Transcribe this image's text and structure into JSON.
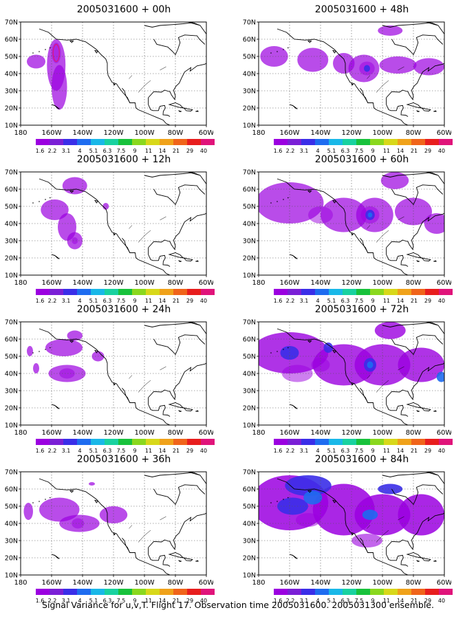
{
  "caption": "Signal Variance for u,v,T. Flight 17. Observation time 2005031600. 2005031300 ensemble.",
  "lat_labels": [
    "70N",
    "60N",
    "50N",
    "40N",
    "30N",
    "20N",
    "10N"
  ],
  "lon_labels": [
    "180",
    "160W",
    "140W",
    "120W",
    "100W",
    "80W",
    "60W"
  ],
  "colorbar": {
    "labels": [
      "1.6",
      "2.2",
      "3.1",
      "4",
      "5.1",
      "6.3",
      "7.5",
      "9",
      "11",
      "14",
      "21",
      "29",
      "40"
    ],
    "colors": [
      "#9b00e0",
      "#7a1fd6",
      "#3a2ee8",
      "#1e6cf0",
      "#19b8e8",
      "#19d2a0",
      "#18c23c",
      "#8ad81e",
      "#d8d81a",
      "#f0a21a",
      "#f0641a",
      "#e81e1e",
      "#e0147a"
    ]
  },
  "panels": [
    {
      "title": "2005031600 + 00h",
      "blobs": [
        [
          157,
          45,
          6,
          15,
          0.7
        ],
        [
          155,
          32,
          5,
          13,
          0.7
        ],
        [
          170,
          47,
          6,
          4,
          0.7
        ],
        [
          157,
          52,
          3,
          6,
          0.45
        ]
      ],
      "cores": [
        [
          157,
          52,
          2,
          5,
          0
        ]
      ]
    },
    {
      "title": "2005031600 + 48h",
      "blobs": [
        [
          170,
          50,
          9,
          6,
          0.7
        ],
        [
          145,
          48,
          10,
          7,
          0.7
        ],
        [
          125,
          46,
          7,
          6,
          0.7
        ],
        [
          112,
          43,
          10,
          8,
          0.7
        ],
        [
          90,
          45,
          12,
          5,
          0.7
        ],
        [
          70,
          44,
          10,
          5,
          0.7
        ],
        [
          95,
          65,
          8,
          3,
          0.7
        ],
        [
          110,
          43,
          5,
          4,
          0.5
        ]
      ],
      "cores": [
        [
          110,
          43,
          2,
          2,
          2
        ]
      ]
    },
    {
      "title": "2005031600 + 12h",
      "blobs": [
        [
          145,
          62,
          8,
          5,
          0.7
        ],
        [
          158,
          48,
          9,
          6,
          0.7
        ],
        [
          150,
          38,
          6,
          8,
          0.7
        ],
        [
          145,
          30,
          5,
          5,
          0.7
        ],
        [
          125,
          50,
          2,
          2,
          0.7
        ],
        [
          145,
          30,
          2,
          2,
          0.5
        ]
      ],
      "cores": []
    },
    {
      "title": "2005031600 + 60h",
      "blobs": [
        [
          160,
          52,
          22,
          12,
          0.7
        ],
        [
          125,
          45,
          15,
          10,
          0.7
        ],
        [
          105,
          45,
          12,
          10,
          0.7
        ],
        [
          80,
          47,
          12,
          8,
          0.7
        ],
        [
          65,
          40,
          8,
          6,
          0.7
        ],
        [
          92,
          65,
          9,
          5,
          0.7
        ],
        [
          108,
          45,
          6,
          5,
          0.5
        ],
        [
          140,
          45,
          8,
          5,
          0.5
        ]
      ],
      "cores": [
        [
          108,
          45,
          3,
          3,
          2
        ],
        [
          108,
          45,
          1.5,
          1.5,
          3
        ]
      ]
    },
    {
      "title": "2005031600 + 24h",
      "blobs": [
        [
          152,
          55,
          12,
          5,
          0.7
        ],
        [
          145,
          62,
          5,
          3,
          0.7
        ],
        [
          150,
          40,
          12,
          5,
          0.7
        ],
        [
          130,
          50,
          4,
          3,
          0.7
        ],
        [
          174,
          53,
          2,
          3,
          0.7
        ],
        [
          170,
          43,
          2,
          3,
          0.7
        ],
        [
          150,
          40,
          5,
          3,
          0.5
        ]
      ],
      "cores": []
    },
    {
      "title": "2005031600 + 72h",
      "blobs": [
        [
          160,
          52,
          25,
          12,
          0.8
        ],
        [
          125,
          45,
          20,
          12,
          0.8
        ],
        [
          100,
          45,
          18,
          12,
          0.8
        ],
        [
          75,
          45,
          15,
          10,
          0.8
        ],
        [
          95,
          65,
          10,
          5,
          0.8
        ],
        [
          155,
          40,
          10,
          5,
          0.5
        ],
        [
          140,
          45,
          6,
          4,
          0.5
        ]
      ],
      "cores": [
        [
          160,
          52,
          6,
          4,
          2
        ],
        [
          108,
          45,
          4,
          4,
          2
        ],
        [
          108,
          45,
          2,
          2,
          3
        ],
        [
          62,
          38,
          3,
          3,
          3
        ],
        [
          135,
          55,
          3,
          3,
          2
        ]
      ]
    },
    {
      "title": "2005031600 + 36h",
      "blobs": [
        [
          155,
          48,
          13,
          7,
          0.7
        ],
        [
          142,
          40,
          13,
          5,
          0.7
        ],
        [
          120,
          45,
          9,
          5,
          0.7
        ],
        [
          175,
          47,
          3,
          5,
          0.7
        ],
        [
          134,
          63,
          2,
          1,
          0.7
        ],
        [
          143,
          40,
          4,
          3,
          0.5
        ]
      ],
      "cores": []
    },
    {
      "title": "2005031600 + 84h",
      "blobs": [
        [
          160,
          52,
          25,
          16,
          0.85
        ],
        [
          125,
          48,
          20,
          15,
          0.85
        ],
        [
          100,
          45,
          18,
          12,
          0.85
        ],
        [
          75,
          45,
          15,
          12,
          0.85
        ],
        [
          110,
          30,
          10,
          4,
          0.6
        ],
        [
          148,
          42,
          8,
          4,
          0.5
        ]
      ],
      "cores": [
        [
          148,
          62,
          15,
          6,
          2
        ],
        [
          158,
          50,
          10,
          5,
          2
        ],
        [
          145,
          55,
          6,
          4,
          3
        ],
        [
          108,
          45,
          5,
          3,
          3
        ],
        [
          95,
          60,
          8,
          3,
          2
        ]
      ]
    }
  ]
}
